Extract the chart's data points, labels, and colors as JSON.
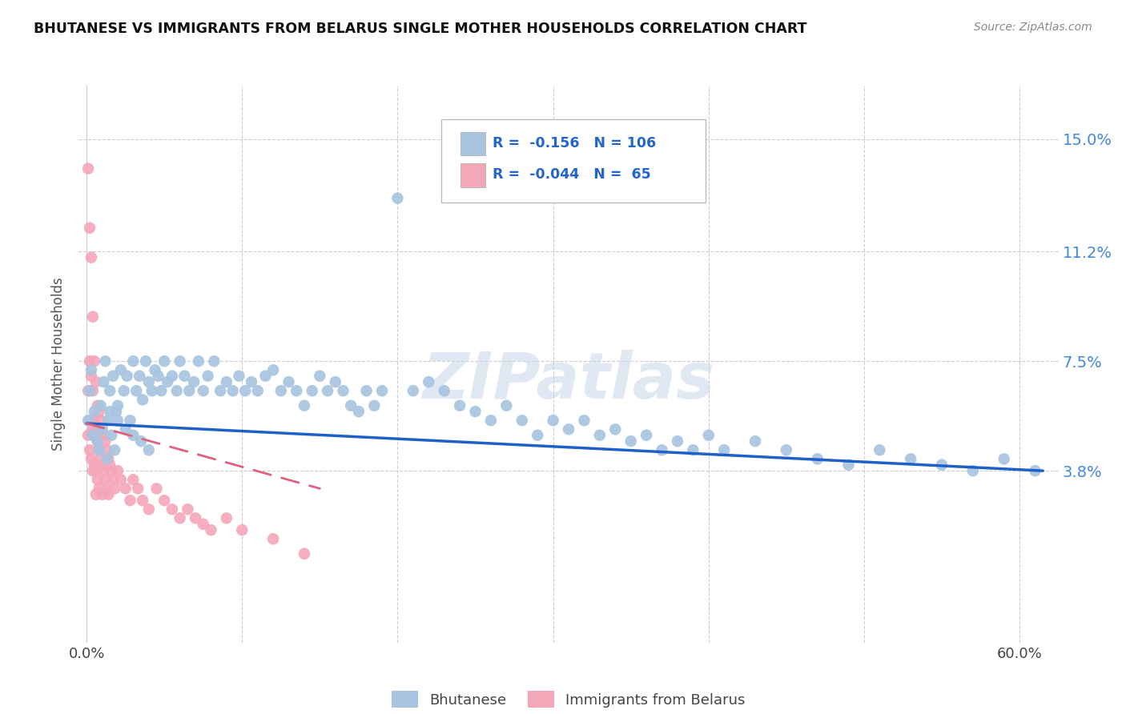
{
  "title": "BHUTANESE VS IMMIGRANTS FROM BELARUS SINGLE MOTHER HOUSEHOLDS CORRELATION CHART",
  "source": "Source: ZipAtlas.com",
  "ylabel_label": "Single Mother Households",
  "y_tick_labels": [
    "3.8%",
    "7.5%",
    "11.2%",
    "15.0%"
  ],
  "y_ticks": [
    0.038,
    0.075,
    0.112,
    0.15
  ],
  "xlim": [
    -0.005,
    0.625
  ],
  "ylim": [
    -0.02,
    0.168
  ],
  "blue_color": "#a8c4e0",
  "pink_color": "#f4a7b9",
  "blue_line_color": "#1f5fc8",
  "pink_line_color": "#e06080",
  "grid_color": "#cccccc",
  "watermark": "ZIPatlas",
  "bhutanese_x": [
    0.001,
    0.002,
    0.003,
    0.004,
    0.005,
    0.007,
    0.008,
    0.009,
    0.01,
    0.011,
    0.012,
    0.013,
    0.014,
    0.015,
    0.016,
    0.017,
    0.018,
    0.019,
    0.02,
    0.022,
    0.024,
    0.026,
    0.028,
    0.03,
    0.032,
    0.034,
    0.036,
    0.038,
    0.04,
    0.042,
    0.044,
    0.046,
    0.048,
    0.05,
    0.052,
    0.055,
    0.058,
    0.06,
    0.063,
    0.066,
    0.069,
    0.072,
    0.075,
    0.078,
    0.082,
    0.086,
    0.09,
    0.094,
    0.098,
    0.102,
    0.106,
    0.11,
    0.115,
    0.12,
    0.125,
    0.13,
    0.135,
    0.14,
    0.145,
    0.15,
    0.155,
    0.16,
    0.165,
    0.17,
    0.175,
    0.18,
    0.185,
    0.19,
    0.2,
    0.21,
    0.22,
    0.23,
    0.24,
    0.25,
    0.26,
    0.27,
    0.28,
    0.29,
    0.3,
    0.31,
    0.32,
    0.33,
    0.34,
    0.35,
    0.36,
    0.37,
    0.38,
    0.39,
    0.4,
    0.41,
    0.43,
    0.45,
    0.47,
    0.49,
    0.51,
    0.53,
    0.55,
    0.57,
    0.59,
    0.61,
    0.015,
    0.02,
    0.025,
    0.03,
    0.035,
    0.04
  ],
  "bhutanese_y": [
    0.055,
    0.065,
    0.072,
    0.05,
    0.058,
    0.048,
    0.045,
    0.06,
    0.052,
    0.068,
    0.075,
    0.042,
    0.055,
    0.065,
    0.05,
    0.07,
    0.045,
    0.058,
    0.06,
    0.072,
    0.065,
    0.07,
    0.055,
    0.075,
    0.065,
    0.07,
    0.062,
    0.075,
    0.068,
    0.065,
    0.072,
    0.07,
    0.065,
    0.075,
    0.068,
    0.07,
    0.065,
    0.075,
    0.07,
    0.065,
    0.068,
    0.075,
    0.065,
    0.07,
    0.075,
    0.065,
    0.068,
    0.065,
    0.07,
    0.065,
    0.068,
    0.065,
    0.07,
    0.072,
    0.065,
    0.068,
    0.065,
    0.06,
    0.065,
    0.07,
    0.065,
    0.068,
    0.065,
    0.06,
    0.058,
    0.065,
    0.06,
    0.065,
    0.13,
    0.065,
    0.068,
    0.065,
    0.06,
    0.058,
    0.055,
    0.06,
    0.055,
    0.05,
    0.055,
    0.052,
    0.055,
    0.05,
    0.052,
    0.048,
    0.05,
    0.045,
    0.048,
    0.045,
    0.05,
    0.045,
    0.048,
    0.045,
    0.042,
    0.04,
    0.045,
    0.042,
    0.04,
    0.038,
    0.042,
    0.038,
    0.058,
    0.055,
    0.052,
    0.05,
    0.048,
    0.045
  ],
  "belarus_x": [
    0.001,
    0.001,
    0.001,
    0.002,
    0.002,
    0.002,
    0.002,
    0.003,
    0.003,
    0.003,
    0.003,
    0.004,
    0.004,
    0.004,
    0.004,
    0.005,
    0.005,
    0.005,
    0.006,
    0.006,
    0.006,
    0.006,
    0.007,
    0.007,
    0.007,
    0.008,
    0.008,
    0.008,
    0.009,
    0.009,
    0.01,
    0.01,
    0.01,
    0.011,
    0.011,
    0.012,
    0.012,
    0.013,
    0.013,
    0.014,
    0.014,
    0.015,
    0.016,
    0.017,
    0.018,
    0.02,
    0.022,
    0.025,
    0.028,
    0.03,
    0.033,
    0.036,
    0.04,
    0.045,
    0.05,
    0.055,
    0.06,
    0.065,
    0.07,
    0.075,
    0.08,
    0.09,
    0.1,
    0.12,
    0.14
  ],
  "belarus_y": [
    0.14,
    0.065,
    0.05,
    0.12,
    0.075,
    0.055,
    0.045,
    0.11,
    0.07,
    0.055,
    0.042,
    0.09,
    0.065,
    0.052,
    0.038,
    0.075,
    0.055,
    0.04,
    0.068,
    0.052,
    0.038,
    0.03,
    0.06,
    0.048,
    0.035,
    0.058,
    0.045,
    0.032,
    0.055,
    0.042,
    0.052,
    0.04,
    0.03,
    0.05,
    0.038,
    0.048,
    0.035,
    0.045,
    0.032,
    0.042,
    0.03,
    0.04,
    0.038,
    0.035,
    0.032,
    0.038,
    0.035,
    0.032,
    0.028,
    0.035,
    0.032,
    0.028,
    0.025,
    0.032,
    0.028,
    0.025,
    0.022,
    0.025,
    0.022,
    0.02,
    0.018,
    0.022,
    0.018,
    0.015,
    0.01
  ],
  "blue_line_x": [
    0.0,
    0.615
  ],
  "blue_line_y": [
    0.054,
    0.038
  ],
  "pink_line_x": [
    0.0,
    0.15
  ],
  "pink_line_y": [
    0.054,
    0.032
  ]
}
